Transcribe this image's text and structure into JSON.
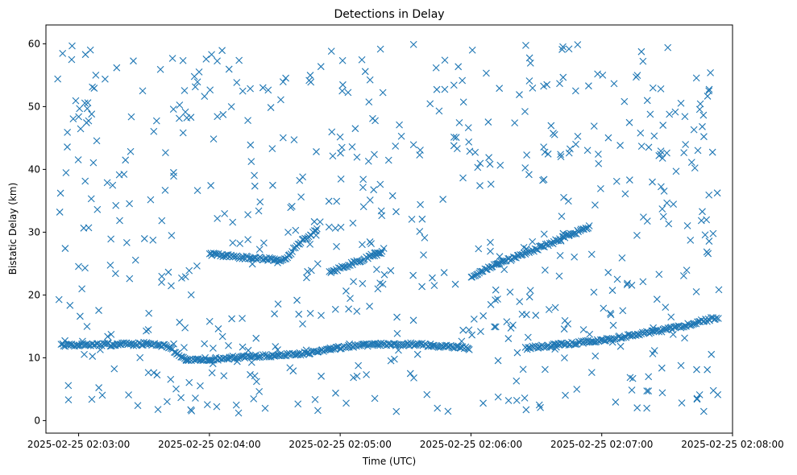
{
  "chart_data": {
    "type": "scatter",
    "title": "Detections in Delay",
    "xlabel": "Time (UTC)",
    "ylabel": "Bistatic Delay (km)",
    "marker": "x",
    "color": "#1f77b4",
    "grid": false,
    "x_range": [
      "2025-02-25 02:02:45",
      "2025-02-25 02:08:00"
    ],
    "ylim": [
      -2,
      63
    ],
    "x_ticks": [
      "2025-02-25 02:03:00",
      "2025-02-25 02:04:00",
      "2025-02-25 02:05:00",
      "2025-02-25 02:06:00",
      "2025-02-25 02:07:00",
      "2025-02-25 02:08:00"
    ],
    "y_ticks": [
      "0",
      "10",
      "20",
      "30",
      "40",
      "50",
      "60"
    ],
    "time_span": [
      "2025-02-25 02:02:50",
      "2025-02-25 02:07:54"
    ],
    "tracks": [
      {
        "points": [
          [
            "2025-02-25 02:02:52",
            12.0
          ],
          [
            "2025-02-25 02:03:30",
            12.2
          ],
          [
            "2025-02-25 02:03:40",
            12.0
          ],
          [
            "2025-02-25 02:03:50",
            9.6
          ],
          [
            "2025-02-25 02:04:20",
            10.2
          ],
          [
            "2025-02-25 02:04:40",
            10.5
          ],
          [
            "2025-02-25 02:05:00",
            11.6
          ],
          [
            "2025-02-25 02:05:10",
            12.0
          ],
          [
            "2025-02-25 02:05:30",
            12.2
          ],
          [
            "2025-02-25 02:05:40",
            12.0
          ],
          [
            "2025-02-25 02:06:00",
            11.5
          ]
        ]
      },
      {
        "points": [
          [
            "2025-02-25 02:06:25",
            11.5
          ],
          [
            "2025-02-25 02:07:00",
            12.8
          ],
          [
            "2025-02-25 02:07:30",
            14.5
          ],
          [
            "2025-02-25 02:07:54",
            16.5
          ]
        ]
      },
      {
        "points": [
          [
            "2025-02-25 02:04:00",
            26.5
          ],
          [
            "2025-02-25 02:04:15",
            26.0
          ],
          [
            "2025-02-25 02:04:35",
            25.5
          ],
          [
            "2025-02-25 02:04:40",
            28.0
          ],
          [
            "2025-02-25 02:04:50",
            30.5
          ]
        ]
      },
      {
        "points": [
          [
            "2025-02-25 02:04:55",
            23.5
          ],
          [
            "2025-02-25 02:05:05",
            25.0
          ],
          [
            "2025-02-25 02:05:20",
            27.0
          ]
        ]
      },
      {
        "points": [
          [
            "2025-02-25 02:06:00",
            23.0
          ],
          [
            "2025-02-25 02:06:20",
            26.0
          ],
          [
            "2025-02-25 02:06:35",
            28.0
          ],
          [
            "2025-02-25 02:06:55",
            31.0
          ]
        ]
      }
    ]
  }
}
